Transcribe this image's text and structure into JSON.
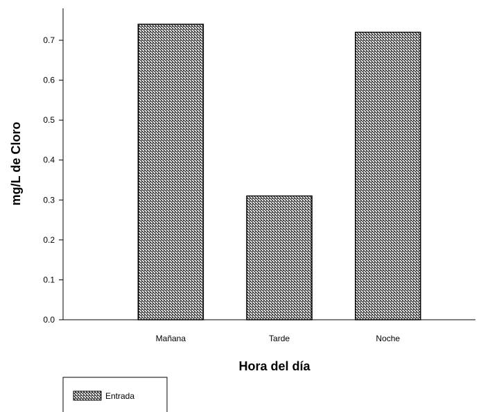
{
  "chart_data": {
    "type": "bar",
    "title": "",
    "xlabel": "Hora del día",
    "ylabel": "mg/L de Cloro",
    "categories": [
      "Mañana",
      "Tarde",
      "Noche"
    ],
    "series": [
      {
        "name": "Entrada",
        "values": [
          0.74,
          0.31,
          0.72
        ]
      }
    ],
    "ylim": [
      0,
      0.78
    ],
    "yticks": [
      0.0,
      0.1,
      0.2,
      0.3,
      0.4,
      0.5,
      0.6,
      0.7
    ],
    "ytick_labels": [
      "0.0",
      "0.1",
      "0.2",
      "0.3",
      "0.4",
      "0.5",
      "0.6",
      "0.7"
    ],
    "grid": false,
    "legend_position": "bottom-left",
    "bar_fill": "diagonal-hatch",
    "colors": {
      "bar_stroke": "#000000",
      "hatch": "#000000",
      "bar_background": "#ffffff",
      "axis": "#000000"
    }
  }
}
